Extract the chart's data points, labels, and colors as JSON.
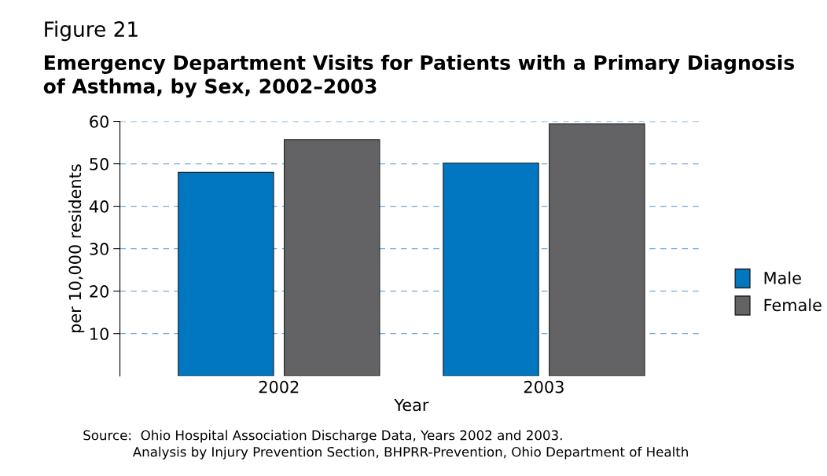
{
  "chart_data": {
    "type": "bar",
    "title": "Figure 21",
    "subtitle": "Emergency Department Visits for Patients with a Primary Diagnosis\nof Asthma, by Sex, 2002–2003",
    "xlabel": "Year",
    "ylabel": "per 10,000 residents",
    "categories": [
      "2002",
      "2003"
    ],
    "series": [
      {
        "name": "Male",
        "color": "#0077c0",
        "values": [
          48,
          50.2
        ]
      },
      {
        "name": "Female",
        "color": "#636365",
        "values": [
          55.7,
          59.4
        ]
      }
    ],
    "ylim": [
      0,
      60
    ],
    "yticks": [
      10,
      20,
      30,
      40,
      50,
      60
    ],
    "grid": "y",
    "legend": "right",
    "annotations": [
      "Source:  Ohio Hospital Association Discharge Data, Years 2002 and 2003.\n            Analysis by Injury Prevention Section, BHPRR-Prevention, Ohio Department of Health"
    ]
  }
}
